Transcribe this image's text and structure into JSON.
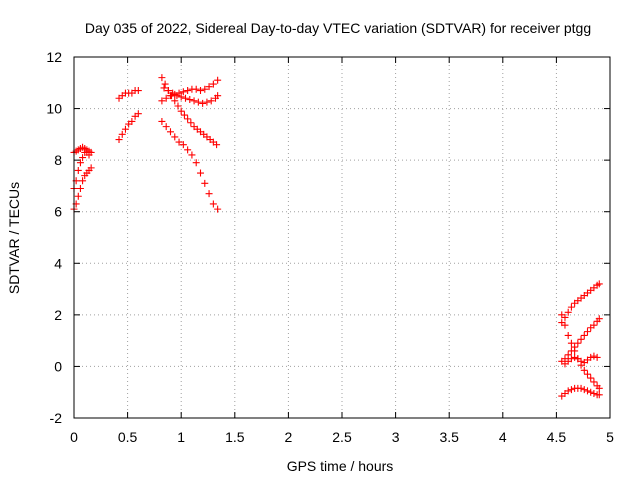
{
  "chart_data": {
    "type": "scatter",
    "title": "Day 035 of 2022, Sidereal Day-to-day VTEC variation (SDTVAR) for receiver ptgg",
    "xlabel": "GPS time / hours",
    "ylabel": "SDTVAR / TECUs",
    "xlim": [
      0,
      5
    ],
    "ylim": [
      -2,
      12
    ],
    "xticks": [
      "0",
      "0.5",
      "1",
      "1.5",
      "2",
      "2.5",
      "3",
      "3.5",
      "4",
      "4.5",
      "5"
    ],
    "yticks": [
      "-2",
      "0",
      "2",
      "4",
      "6",
      "8",
      "10",
      "12"
    ],
    "grid": true,
    "marker": "plus",
    "color": "#ff0000",
    "series": [
      {
        "x": [
          0.0,
          0.02,
          0.04,
          0.06,
          0.08,
          0.1,
          0.12,
          0.14,
          0.16
        ],
        "y": [
          8.3,
          8.35,
          8.4,
          8.45,
          8.5,
          8.45,
          8.4,
          8.35,
          8.3
        ]
      },
      {
        "x": [
          0.0,
          0.02,
          0.04,
          0.06,
          0.08,
          0.1,
          0.12,
          0.14,
          0.16
        ],
        "y": [
          6.1,
          6.3,
          6.6,
          6.9,
          7.2,
          7.4,
          7.5,
          7.6,
          7.7
        ]
      },
      {
        "x": [
          0.0,
          0.02,
          0.04,
          0.06,
          0.08,
          0.1,
          0.12,
          0.14
        ],
        "y": [
          6.9,
          7.2,
          7.6,
          7.9,
          8.1,
          8.3,
          8.3,
          8.2
        ]
      },
      {
        "x": [
          0.42,
          0.45,
          0.48,
          0.51,
          0.54,
          0.57,
          0.6
        ],
        "y": [
          10.4,
          10.5,
          10.6,
          10.6,
          10.6,
          10.7,
          10.7
        ]
      },
      {
        "x": [
          0.42,
          0.45,
          0.48,
          0.51,
          0.54,
          0.57,
          0.6
        ],
        "y": [
          8.8,
          9.0,
          9.2,
          9.4,
          9.5,
          9.7,
          9.8
        ]
      },
      {
        "x": [
          0.82,
          0.85,
          0.88,
          0.91,
          0.94,
          0.97,
          1.0,
          1.03,
          1.06,
          1.09,
          1.12,
          1.15,
          1.18,
          1.21,
          1.24,
          1.27,
          1.3,
          1.33
        ],
        "y": [
          11.2,
          10.95,
          10.7,
          10.5,
          10.3,
          10.1,
          9.9,
          9.75,
          9.6,
          9.45,
          9.3,
          9.2,
          9.1,
          9.0,
          8.9,
          8.8,
          8.7,
          8.6
        ]
      },
      {
        "x": [
          0.82,
          0.86,
          0.9,
          0.94,
          0.98,
          1.02,
          1.06,
          1.1,
          1.14,
          1.18,
          1.22,
          1.26,
          1.3,
          1.34
        ],
        "y": [
          9.5,
          9.3,
          9.1,
          8.9,
          8.7,
          8.6,
          8.4,
          8.2,
          7.9,
          7.5,
          7.1,
          6.7,
          6.3,
          6.1
        ]
      },
      {
        "x": [
          0.82,
          0.86,
          0.9,
          0.94,
          0.98,
          1.02,
          1.06,
          1.1,
          1.14,
          1.18,
          1.22,
          1.26,
          1.3,
          1.34
        ],
        "y": [
          10.3,
          10.4,
          10.5,
          10.55,
          10.6,
          10.65,
          10.7,
          10.75,
          10.75,
          10.7,
          10.75,
          10.85,
          10.95,
          11.1
        ]
      },
      {
        "x": [
          0.84,
          0.88,
          0.92,
          0.96,
          1.0,
          1.04,
          1.08,
          1.12,
          1.16,
          1.2,
          1.24,
          1.28,
          1.32,
          1.34
        ],
        "y": [
          10.8,
          10.7,
          10.6,
          10.5,
          10.45,
          10.4,
          10.35,
          10.3,
          10.25,
          10.2,
          10.25,
          10.3,
          10.4,
          10.5
        ]
      },
      {
        "x": [
          4.55,
          4.58,
          4.61,
          4.64,
          4.67,
          4.7,
          4.73,
          4.76,
          4.79,
          4.82,
          4.85,
          4.88,
          4.9
        ],
        "y": [
          1.7,
          1.9,
          2.1,
          2.3,
          2.45,
          2.55,
          2.65,
          2.75,
          2.85,
          2.95,
          3.05,
          3.15,
          3.2
        ]
      },
      {
        "x": [
          4.55,
          4.58,
          4.61,
          4.64,
          4.67,
          4.7,
          4.73,
          4.76,
          4.79,
          4.82,
          4.85,
          4.88,
          4.9
        ],
        "y": [
          0.2,
          0.3,
          0.45,
          0.6,
          0.75,
          0.9,
          1.05,
          1.2,
          1.35,
          1.5,
          1.6,
          1.75,
          1.85
        ]
      },
      {
        "x": [
          4.55,
          4.58,
          4.61,
          4.64,
          4.67,
          4.7,
          4.73,
          4.76,
          4.79,
          4.82,
          4.85,
          4.88,
          4.9
        ],
        "y": [
          2.0,
          1.6,
          1.2,
          0.9,
          0.6,
          0.3,
          0.05,
          -0.15,
          -0.3,
          -0.45,
          -0.6,
          -0.75,
          -0.85
        ]
      },
      {
        "x": [
          4.55,
          4.58,
          4.61,
          4.64,
          4.67,
          4.7,
          4.73,
          4.76,
          4.79,
          4.82,
          4.85,
          4.88,
          4.9
        ],
        "y": [
          -1.15,
          -1.05,
          -0.95,
          -0.9,
          -0.85,
          -0.85,
          -0.85,
          -0.9,
          -0.95,
          -1.0,
          -1.05,
          -1.1,
          -1.1
        ]
      },
      {
        "x": [
          4.58,
          4.61,
          4.64,
          4.67,
          4.7,
          4.73,
          4.76,
          4.79,
          4.82,
          4.85,
          4.88
        ],
        "y": [
          0.1,
          0.2,
          0.3,
          0.35,
          0.3,
          0.2,
          0.15,
          0.25,
          0.35,
          0.4,
          0.35
        ]
      }
    ]
  }
}
